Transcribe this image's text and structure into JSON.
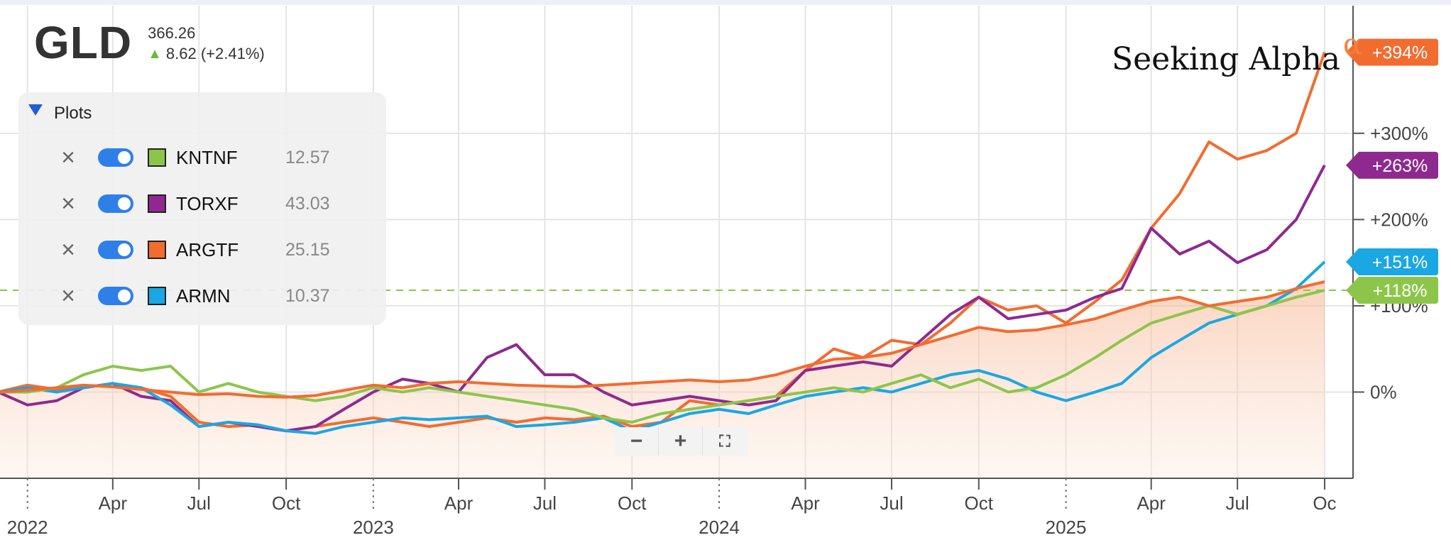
{
  "header": {
    "symbol": "GLD",
    "price": "366.26",
    "change": "8.62 (+2.41%)",
    "change_icon": "up-arrow-icon",
    "change_color": "#6cba3b"
  },
  "legend": {
    "title": "Plots",
    "items": [
      {
        "ticker": "KNTNF",
        "value": "12.57",
        "color": "#8dc54b"
      },
      {
        "ticker": "TORXF",
        "value": "43.03",
        "color": "#8e2a8f"
      },
      {
        "ticker": "ARGTF",
        "value": "25.15",
        "color": "#f26c30"
      },
      {
        "ticker": "ARMN",
        "value": "10.37",
        "color": "#1aa7e3"
      }
    ]
  },
  "logo": {
    "text": "Seeking Alpha",
    "glyph": "α"
  },
  "zoom_controls": {
    "minus": "−",
    "plus": "+",
    "expand": "⛶"
  },
  "chart_data": {
    "type": "line",
    "x_start": "2022-01",
    "x_end": "2025-10",
    "xlim": [
      "2021-12-03",
      "2025-10-31"
    ],
    "ylim": [
      -100,
      420
    ],
    "y_ticks": [
      "0%",
      "+100%",
      "+200%",
      "+300%"
    ],
    "x_month_ticks": [
      "Apr",
      "Jul",
      "Oct",
      "Apr",
      "Jul",
      "Oct",
      "Apr",
      "Jul",
      "Oct",
      "Apr",
      "Jul",
      "Oc"
    ],
    "x_year_ticks": [
      "2022",
      "2023",
      "2024",
      "2025"
    ],
    "reference_line": {
      "value": 118,
      "style": "dashed",
      "color": "#8dc54b"
    },
    "series": [
      {
        "name": "ARGTF",
        "color": "#f26c30",
        "end_label": "+394%",
        "x": [
          "2021-12",
          "2022-01",
          "2022-02",
          "2022-03",
          "2022-04",
          "2022-05",
          "2022-06",
          "2022-07",
          "2022-08",
          "2022-09",
          "2022-10",
          "2022-11",
          "2022-12",
          "2023-01",
          "2023-02",
          "2023-03",
          "2023-04",
          "2023-05",
          "2023-06",
          "2023-07",
          "2023-08",
          "2023-09",
          "2023-10",
          "2023-11",
          "2023-12",
          "2024-01",
          "2024-02",
          "2024-03",
          "2024-04",
          "2024-05",
          "2024-06",
          "2024-07",
          "2024-08",
          "2024-09",
          "2024-10",
          "2024-11",
          "2024-12",
          "2025-01",
          "2025-02",
          "2025-03",
          "2025-04",
          "2025-05",
          "2025-06",
          "2025-07",
          "2025-08",
          "2025-09",
          "2025-10"
        ],
        "values": [
          0,
          8,
          3,
          5,
          10,
          5,
          -5,
          -35,
          -40,
          -38,
          -45,
          -40,
          -35,
          -30,
          -35,
          -40,
          -35,
          -30,
          -35,
          -30,
          -32,
          -28,
          -40,
          -35,
          -10,
          -15,
          -10,
          -5,
          25,
          50,
          40,
          60,
          55,
          80,
          110,
          95,
          100,
          80,
          105,
          130,
          190,
          230,
          290,
          270,
          280,
          300,
          394
        ]
      },
      {
        "name": "TORXF",
        "color": "#8e2a8f",
        "end_label": "+263%",
        "x": [
          "2021-12",
          "2022-01",
          "2022-02",
          "2022-03",
          "2022-04",
          "2022-05",
          "2022-06",
          "2022-07",
          "2022-08",
          "2022-09",
          "2022-10",
          "2022-11",
          "2022-12",
          "2023-01",
          "2023-02",
          "2023-03",
          "2023-04",
          "2023-05",
          "2023-06",
          "2023-07",
          "2023-08",
          "2023-09",
          "2023-10",
          "2023-11",
          "2023-12",
          "2024-01",
          "2024-02",
          "2024-03",
          "2024-04",
          "2024-05",
          "2024-06",
          "2024-07",
          "2024-08",
          "2024-09",
          "2024-10",
          "2024-11",
          "2024-12",
          "2025-01",
          "2025-02",
          "2025-03",
          "2025-04",
          "2025-05",
          "2025-06",
          "2025-07",
          "2025-08",
          "2025-09",
          "2025-10"
        ],
        "values": [
          0,
          -15,
          -10,
          5,
          10,
          -5,
          -10,
          -40,
          -35,
          -40,
          -45,
          -40,
          -20,
          0,
          15,
          10,
          0,
          40,
          55,
          20,
          20,
          0,
          -15,
          -10,
          -5,
          -10,
          -15,
          -10,
          25,
          30,
          35,
          30,
          60,
          90,
          110,
          85,
          90,
          95,
          110,
          120,
          190,
          160,
          175,
          150,
          165,
          200,
          263
        ]
      },
      {
        "name": "ARMN",
        "color": "#1aa7e3",
        "end_label": "+151%",
        "x": [
          "2021-12",
          "2022-01",
          "2022-02",
          "2022-03",
          "2022-04",
          "2022-05",
          "2022-06",
          "2022-07",
          "2022-08",
          "2022-09",
          "2022-10",
          "2022-11",
          "2022-12",
          "2023-01",
          "2023-02",
          "2023-03",
          "2023-04",
          "2023-05",
          "2023-06",
          "2023-07",
          "2023-08",
          "2023-09",
          "2023-10",
          "2023-11",
          "2023-12",
          "2024-01",
          "2024-02",
          "2024-03",
          "2024-04",
          "2024-05",
          "2024-06",
          "2024-07",
          "2024-08",
          "2024-09",
          "2024-10",
          "2024-11",
          "2024-12",
          "2025-01",
          "2025-02",
          "2025-03",
          "2025-04",
          "2025-05",
          "2025-06",
          "2025-07",
          "2025-08",
          "2025-09",
          "2025-10"
        ],
        "values": [
          0,
          5,
          0,
          5,
          10,
          5,
          -15,
          -40,
          -35,
          -38,
          -45,
          -48,
          -40,
          -35,
          -30,
          -32,
          -30,
          -28,
          -40,
          -38,
          -35,
          -30,
          -45,
          -35,
          -25,
          -20,
          -25,
          -15,
          -5,
          0,
          5,
          0,
          10,
          20,
          25,
          15,
          0,
          -10,
          0,
          10,
          40,
          60,
          80,
          90,
          100,
          120,
          151
        ]
      },
      {
        "name": "KNTNF",
        "color": "#8dc54b",
        "end_label": "+118%",
        "x": [
          "2021-12",
          "2022-01",
          "2022-02",
          "2022-03",
          "2022-04",
          "2022-05",
          "2022-06",
          "2022-07",
          "2022-08",
          "2022-09",
          "2022-10",
          "2022-11",
          "2022-12",
          "2023-01",
          "2023-02",
          "2023-03",
          "2023-04",
          "2023-05",
          "2023-06",
          "2023-07",
          "2023-08",
          "2023-09",
          "2023-10",
          "2023-11",
          "2023-12",
          "2024-01",
          "2024-02",
          "2024-03",
          "2024-04",
          "2024-05",
          "2024-06",
          "2024-07",
          "2024-08",
          "2024-09",
          "2024-10",
          "2024-11",
          "2024-12",
          "2025-01",
          "2025-02",
          "2025-03",
          "2025-04",
          "2025-05",
          "2025-06",
          "2025-07",
          "2025-08",
          "2025-09",
          "2025-10"
        ],
        "values": [
          0,
          0,
          5,
          20,
          30,
          25,
          30,
          0,
          10,
          0,
          -5,
          -10,
          -5,
          5,
          0,
          5,
          0,
          -5,
          -10,
          -15,
          -20,
          -30,
          -35,
          -25,
          -20,
          -15,
          -10,
          -5,
          0,
          5,
          0,
          10,
          20,
          5,
          15,
          0,
          5,
          20,
          40,
          60,
          80,
          90,
          100,
          90,
          100,
          110,
          118
        ]
      },
      {
        "name": "GLD",
        "color": "#f26c30",
        "end_label": "",
        "x": [
          "2021-12",
          "2022-01",
          "2022-02",
          "2022-03",
          "2022-04",
          "2022-05",
          "2022-06",
          "2022-07",
          "2022-08",
          "2022-09",
          "2022-10",
          "2022-11",
          "2022-12",
          "2023-01",
          "2023-02",
          "2023-03",
          "2023-04",
          "2023-05",
          "2023-06",
          "2023-07",
          "2023-08",
          "2023-09",
          "2023-10",
          "2023-11",
          "2023-12",
          "2024-01",
          "2024-02",
          "2024-03",
          "2024-04",
          "2024-05",
          "2024-06",
          "2024-07",
          "2024-08",
          "2024-09",
          "2024-10",
          "2024-11",
          "2024-12",
          "2025-01",
          "2025-02",
          "2025-03",
          "2025-04",
          "2025-05",
          "2025-06",
          "2025-07",
          "2025-08",
          "2025-09",
          "2025-10"
        ],
        "values": [
          0,
          2,
          5,
          8,
          6,
          3,
          0,
          -3,
          -2,
          -5,
          -6,
          -4,
          2,
          8,
          5,
          10,
          12,
          10,
          8,
          7,
          6,
          8,
          10,
          12,
          14,
          12,
          14,
          20,
          30,
          38,
          40,
          45,
          55,
          65,
          75,
          70,
          72,
          78,
          85,
          95,
          105,
          110,
          100,
          105,
          110,
          120,
          128
        ]
      }
    ]
  }
}
